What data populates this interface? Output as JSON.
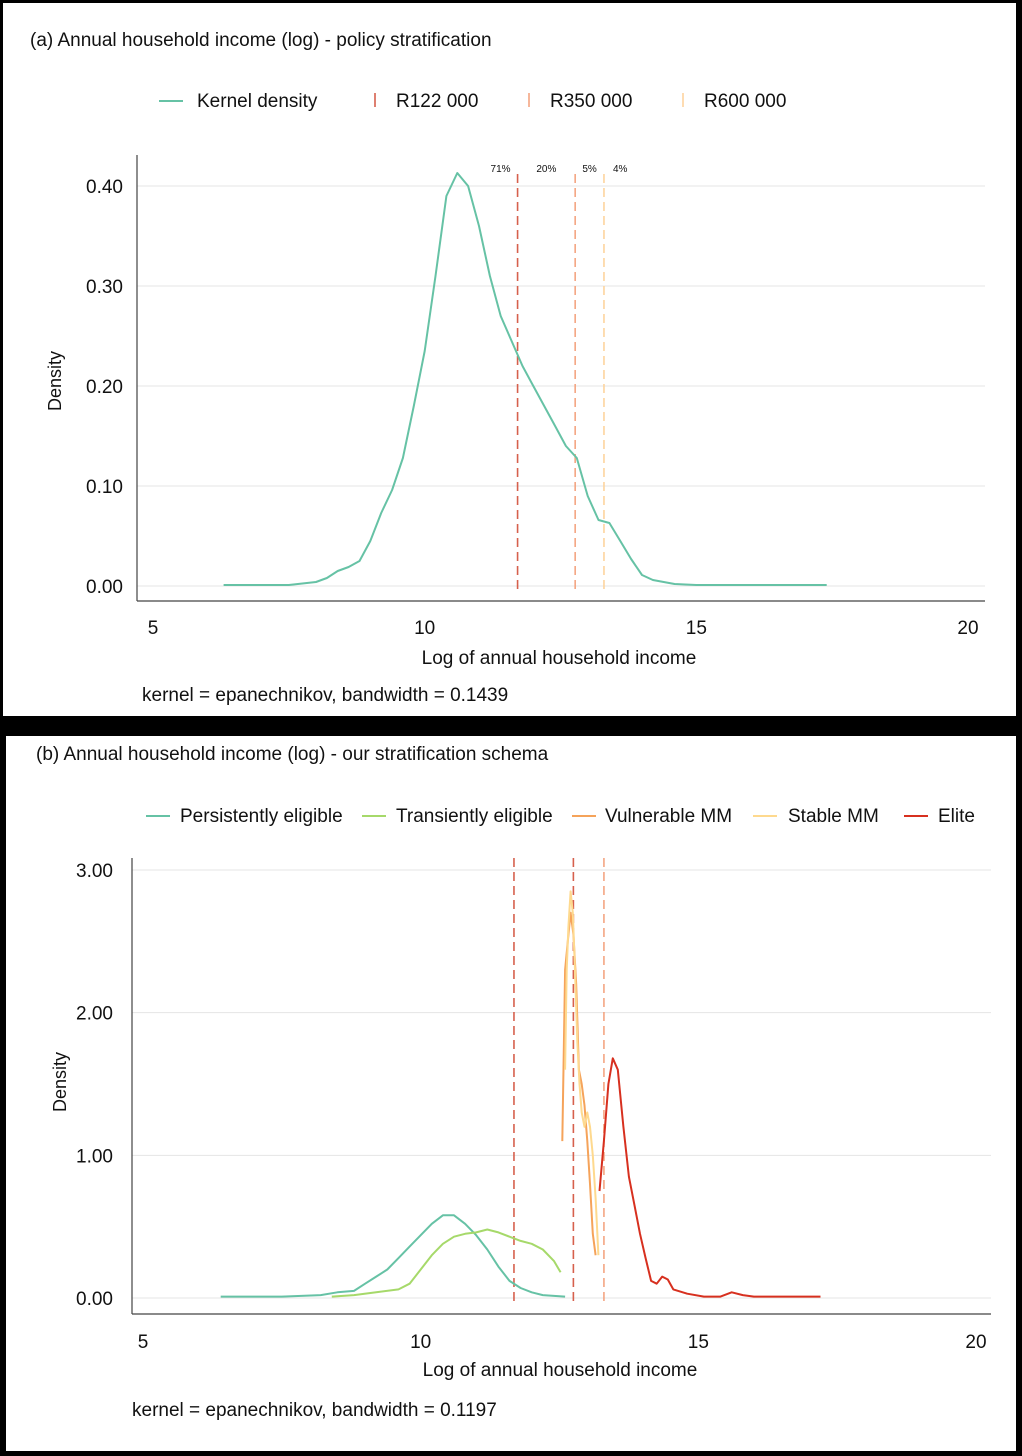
{
  "chart_data": [
    {
      "type": "line",
      "title": "(a) Annual household income (log) - policy stratification",
      "xlabel": "Log of annual household income",
      "ylabel": "Density",
      "xlim": [
        5,
        20
      ],
      "ylim": [
        0,
        0.43
      ],
      "xticks": [
        5,
        10,
        15,
        20
      ],
      "xtick_labels": [
        "5",
        "10",
        "15",
        "20"
      ],
      "yticks": [
        0,
        0.1,
        0.2,
        0.3,
        0.4
      ],
      "ytick_labels": [
        "0.00",
        "0.10",
        "0.20",
        "0.30",
        "0.40"
      ],
      "grid": "horizontal",
      "legend_position": "top",
      "note": "kernel = epanechnikov, bandwidth = 0.1439",
      "series": [
        {
          "name": "Kernel density",
          "color": "#66c2a5",
          "points": [
            [
              6.3,
              0.001
            ],
            [
              7.0,
              0.001
            ],
            [
              7.5,
              0.001
            ],
            [
              8.0,
              0.004
            ],
            [
              8.2,
              0.008
            ],
            [
              8.4,
              0.015
            ],
            [
              8.6,
              0.019
            ],
            [
              8.8,
              0.025
            ],
            [
              9.0,
              0.045
            ],
            [
              9.2,
              0.073
            ],
            [
              9.4,
              0.096
            ],
            [
              9.6,
              0.128
            ],
            [
              9.8,
              0.18
            ],
            [
              10.0,
              0.235
            ],
            [
              10.2,
              0.31
            ],
            [
              10.4,
              0.39
            ],
            [
              10.6,
              0.413
            ],
            [
              10.8,
              0.4
            ],
            [
              11.0,
              0.36
            ],
            [
              11.2,
              0.31
            ],
            [
              11.4,
              0.27
            ],
            [
              11.6,
              0.245
            ],
            [
              11.8,
              0.22
            ],
            [
              12.0,
              0.2
            ],
            [
              12.2,
              0.18
            ],
            [
              12.4,
              0.16
            ],
            [
              12.6,
              0.14
            ],
            [
              12.8,
              0.128
            ],
            [
              13.0,
              0.09
            ],
            [
              13.2,
              0.066
            ],
            [
              13.4,
              0.063
            ],
            [
              13.6,
              0.045
            ],
            [
              13.8,
              0.027
            ],
            [
              14.0,
              0.011
            ],
            [
              14.2,
              0.006
            ],
            [
              14.4,
              0.004
            ],
            [
              14.6,
              0.002
            ],
            [
              15.0,
              0.001
            ],
            [
              15.8,
              0.001
            ],
            [
              17.4,
              0.001
            ]
          ]
        }
      ],
      "vlines": [
        {
          "name": "R122 000",
          "x": 11.71,
          "color": "#d6604d",
          "label": "71%"
        },
        {
          "name": "R350 000",
          "x": 12.77,
          "color": "#f4a582",
          "label": "20%"
        },
        {
          "name": "R600 000",
          "x": 13.3,
          "color": "#fdd49e",
          "label": "5%"
        }
      ],
      "extra_region_label": "4%"
    },
    {
      "type": "line",
      "title": "(b) Annual household income (log) - our stratification schema",
      "xlabel": "Log of annual household income",
      "ylabel": "Density",
      "xlim": [
        5,
        20
      ],
      "ylim": [
        0,
        3.05
      ],
      "xticks": [
        5,
        10,
        15,
        20
      ],
      "xtick_labels": [
        "5",
        "10",
        "15",
        "20"
      ],
      "yticks": [
        0,
        1,
        2,
        3
      ],
      "ytick_labels": [
        "0.00",
        "1.00",
        "2.00",
        "3.00"
      ],
      "grid": "horizontal",
      "legend_position": "top",
      "note": "kernel = epanechnikov, bandwidth = 0.1197",
      "series": [
        {
          "name": "Persistently eligible",
          "color": "#66c2a5",
          "points": [
            [
              6.4,
              0.01
            ],
            [
              7.5,
              0.01
            ],
            [
              8.2,
              0.02
            ],
            [
              8.5,
              0.04
            ],
            [
              8.8,
              0.05
            ],
            [
              9.0,
              0.1
            ],
            [
              9.2,
              0.15
            ],
            [
              9.4,
              0.2
            ],
            [
              9.6,
              0.28
            ],
            [
              9.8,
              0.36
            ],
            [
              10.0,
              0.44
            ],
            [
              10.2,
              0.52
            ],
            [
              10.4,
              0.58
            ],
            [
              10.6,
              0.58
            ],
            [
              10.8,
              0.52
            ],
            [
              11.0,
              0.44
            ],
            [
              11.2,
              0.34
            ],
            [
              11.4,
              0.22
            ],
            [
              11.6,
              0.12
            ],
            [
              11.8,
              0.07
            ],
            [
              12.0,
              0.04
            ],
            [
              12.2,
              0.02
            ],
            [
              12.6,
              0.01
            ]
          ]
        },
        {
          "name": "Transiently eligible",
          "color": "#a6d96a",
          "points": [
            [
              8.4,
              0.01
            ],
            [
              8.8,
              0.02
            ],
            [
              9.2,
              0.04
            ],
            [
              9.6,
              0.06
            ],
            [
              9.8,
              0.1
            ],
            [
              10.0,
              0.2
            ],
            [
              10.2,
              0.3
            ],
            [
              10.4,
              0.38
            ],
            [
              10.6,
              0.43
            ],
            [
              10.8,
              0.45
            ],
            [
              11.0,
              0.46
            ],
            [
              11.2,
              0.48
            ],
            [
              11.4,
              0.46
            ],
            [
              11.6,
              0.43
            ],
            [
              11.8,
              0.4
            ],
            [
              12.0,
              0.38
            ],
            [
              12.2,
              0.34
            ],
            [
              12.4,
              0.26
            ],
            [
              12.52,
              0.18
            ]
          ]
        },
        {
          "name": "Vulnerable MM",
          "color": "#f5a35a",
          "points": [
            [
              12.55,
              1.1
            ],
            [
              12.6,
              2.3
            ],
            [
              12.65,
              2.5
            ],
            [
              12.7,
              2.7
            ],
            [
              12.75,
              2.55
            ],
            [
              12.8,
              2.2
            ],
            [
              12.85,
              1.6
            ],
            [
              12.9,
              1.5
            ],
            [
              12.95,
              1.35
            ],
            [
              13.0,
              1.1
            ],
            [
              13.05,
              0.8
            ],
            [
              13.1,
              0.45
            ],
            [
              13.15,
              0.3
            ]
          ]
        },
        {
          "name": "Stable MM",
          "color": "#fed98e",
          "points": [
            [
              12.6,
              1.6
            ],
            [
              12.63,
              2.3
            ],
            [
              12.66,
              2.6
            ],
            [
              12.7,
              2.85
            ],
            [
              12.74,
              2.7
            ],
            [
              12.78,
              2.3
            ],
            [
              12.82,
              1.8
            ],
            [
              12.86,
              1.5
            ],
            [
              12.9,
              1.3
            ],
            [
              12.95,
              1.2
            ],
            [
              13.0,
              1.3
            ],
            [
              13.05,
              1.2
            ],
            [
              13.1,
              1.0
            ],
            [
              13.15,
              0.7
            ],
            [
              13.2,
              0.3
            ]
          ]
        },
        {
          "name": "Elite",
          "color": "#d7301f",
          "points": [
            [
              13.22,
              0.75
            ],
            [
              13.3,
              1.1
            ],
            [
              13.38,
              1.5
            ],
            [
              13.46,
              1.68
            ],
            [
              13.55,
              1.6
            ],
            [
              13.65,
              1.2
            ],
            [
              13.75,
              0.85
            ],
            [
              13.85,
              0.65
            ],
            [
              13.95,
              0.45
            ],
            [
              14.05,
              0.28
            ],
            [
              14.15,
              0.12
            ],
            [
              14.25,
              0.1
            ],
            [
              14.35,
              0.15
            ],
            [
              14.45,
              0.13
            ],
            [
              14.55,
              0.06
            ],
            [
              14.8,
              0.03
            ],
            [
              15.1,
              0.01
            ],
            [
              15.4,
              0.01
            ],
            [
              15.6,
              0.04
            ],
            [
              15.8,
              0.02
            ],
            [
              16.0,
              0.01
            ],
            [
              17.2,
              0.01
            ]
          ]
        }
      ],
      "vlines": [
        {
          "x": 11.68,
          "color": "#d6604d"
        },
        {
          "x": 12.75,
          "color": "#d6604d"
        },
        {
          "x": 13.3,
          "color": "#f4a582"
        }
      ]
    }
  ]
}
